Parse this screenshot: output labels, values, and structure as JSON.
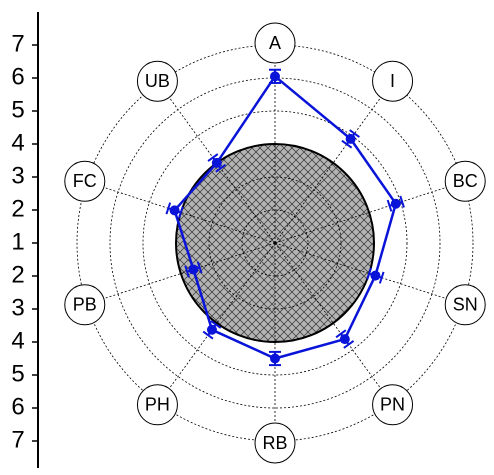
{
  "chart_data": {
    "type": "radar",
    "categories": [
      "A",
      "I",
      "BC",
      "SN",
      "PN",
      "RB",
      "PH",
      "PB",
      "FC",
      "UB"
    ],
    "values": [
      6.05,
      4.9,
      4.85,
      4.2,
      4.6,
      4.5,
      4.25,
      3.6,
      4.2,
      4.0
    ],
    "errors": [
      0.2,
      0.2,
      0.2,
      0.2,
      0.2,
      0.2,
      0.2,
      0.2,
      0.2,
      0.2
    ],
    "color": "#0a14d8",
    "reference_value": 4,
    "rlim": [
      1,
      7
    ],
    "rticks": [
      1,
      2,
      3,
      4,
      5,
      6,
      7
    ],
    "grid": true
  }
}
